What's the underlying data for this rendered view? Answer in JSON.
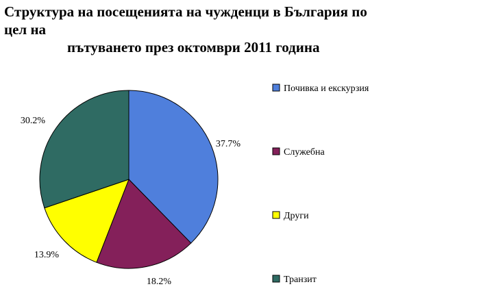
{
  "title": {
    "line1": "Структура на посещенията на чужденци в България по цел на",
    "line2": "пътуването през октомври 2011 година"
  },
  "chart_data": {
    "type": "pie",
    "title": "Структура на посещенията на чужденци в България по цел на пътуването през октомври 2011 година",
    "slices": [
      {
        "name": "Почивка и екскурзия",
        "value": 37.7,
        "label": "37.7%",
        "color": "#4f7fdc"
      },
      {
        "name": "Служебна",
        "value": 18.2,
        "label": "18.2%",
        "color": "#84205a"
      },
      {
        "name": "Други",
        "value": 13.9,
        "label": "13.9%",
        "color": "#ffff00"
      },
      {
        "name": "Транзит",
        "value": 30.2,
        "label": "30.2%",
        "color": "#2f6b63"
      }
    ],
    "start_angle_deg": 0,
    "direction": "clockwise",
    "legend_position": "right"
  }
}
